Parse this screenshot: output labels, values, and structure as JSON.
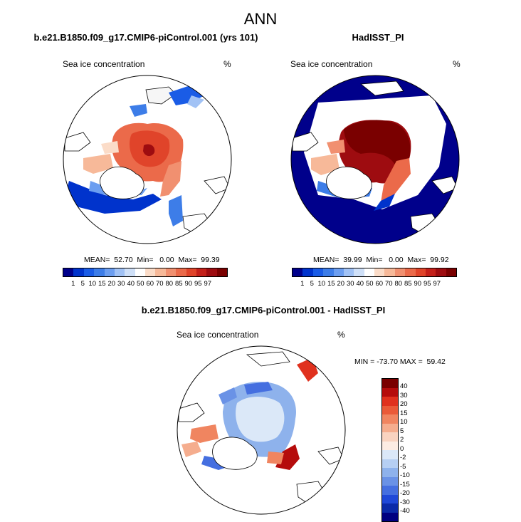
{
  "title": "ANN",
  "panels": [
    {
      "title": "b.e21.B1850.f09_g17.CMIP6-piControl.001 (yrs 101)",
      "left_label": "Sea ice concentration",
      "right_label": "%",
      "stats": "MEAN=  52.70  Min=   0.00  Max=  99.39"
    },
    {
      "title": "HadISST_PI",
      "left_label": "Sea ice concentration",
      "right_label": "%",
      "stats": "MEAN=  39.99  Min=   0.00  Max=  99.92"
    }
  ],
  "diff_panel": {
    "title": "b.e21.B1850.f09_g17.CMIP6-piControl.001 - HadISST_PI",
    "left_label": "Sea ice concentration",
    "right_label": "%",
    "stats": "MIN = -73.70 MAX =  59.42"
  },
  "colorbar_levels": [
    "1",
    "5",
    "10",
    "15",
    "20",
    "30",
    "40",
    "50",
    "60",
    "70",
    "80",
    "85",
    "90",
    "95",
    "97"
  ],
  "colorbar_colors": [
    "#00008b",
    "#0033cc",
    "#1a5ce6",
    "#3d7de8",
    "#6c9ef0",
    "#a1c2f5",
    "#cfe0f8",
    "#ffffff",
    "#fbdcc8",
    "#f7b999",
    "#f19070",
    "#eb6a4a",
    "#e0442a",
    "#c4201a",
    "#9e0c10",
    "#7a0000"
  ],
  "diff_levels": [
    "40",
    "30",
    "20",
    "15",
    "10",
    "5",
    "2",
    "0",
    "-2",
    "-5",
    "-10",
    "-15",
    "-20",
    "-30",
    "-40"
  ],
  "diff_colors": [
    "#7a0000",
    "#b50c0c",
    "#e0311e",
    "#ea5a38",
    "#f08560",
    "#f5ad8e",
    "#f9d3c0",
    "#fcece3",
    "#dbe8f8",
    "#b6cff3",
    "#8eb2ec",
    "#6a92e6",
    "#456fe0",
    "#1f48d8",
    "#0b2aa8",
    "#000080"
  ]
}
